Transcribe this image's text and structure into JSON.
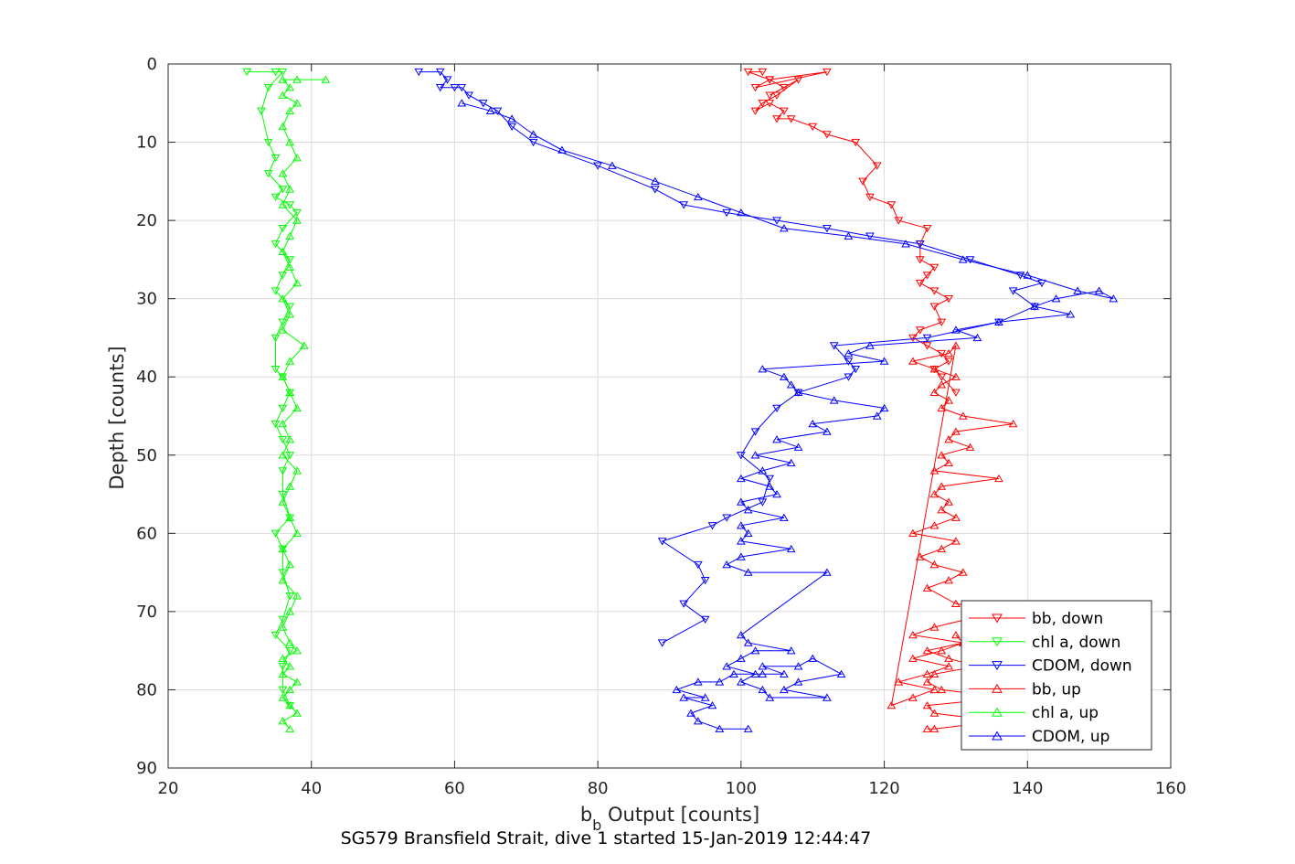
{
  "chart_data": {
    "type": "line",
    "title": "SG579 Bransfield Strait, dive 1 started 15-Jan-2019 12:44:47",
    "xlabel": "b_b Output [counts]",
    "xlabel_main": "b",
    "xlabel_sub": "b",
    "xlabel_rest": " Output [counts]",
    "ylabel": "Depth [counts]",
    "xlim": [
      20,
      160
    ],
    "ylim": [
      0,
      90
    ],
    "y_reversed": true,
    "grid": true,
    "legend_position": "bottom-right",
    "xticks": [
      20,
      40,
      60,
      80,
      100,
      120,
      140,
      160
    ],
    "yticks": [
      0,
      10,
      20,
      30,
      40,
      50,
      60,
      70,
      80,
      90
    ],
    "series": [
      {
        "name": "bb, down",
        "color": "#ff0000",
        "marker": "triangle-down",
        "x": [
          103,
          101,
          104,
          102,
          112,
          104,
          106,
          104,
          108,
          105,
          103,
          102,
          104,
          106,
          105,
          107,
          110,
          112,
          116,
          119,
          117,
          118,
          121,
          122,
          126,
          125,
          125,
          127,
          126,
          125,
          127,
          129,
          127,
          128,
          125,
          124,
          126,
          128,
          129,
          127,
          128,
          130
        ],
        "y": [
          1,
          1,
          2,
          3,
          1,
          2,
          3,
          4,
          2,
          4,
          5,
          6,
          5,
          6,
          7,
          7,
          8,
          9,
          10,
          13,
          15,
          17,
          18,
          20,
          21,
          23,
          25,
          26,
          27,
          28,
          29,
          30,
          31,
          33,
          34,
          35,
          36,
          37,
          38,
          39,
          40,
          42
        ]
      },
      {
        "name": "chl a, down",
        "color": "#00ff00",
        "marker": "triangle-down",
        "x": [
          31,
          35,
          36,
          34,
          33,
          34,
          35,
          34,
          36,
          35,
          37,
          38,
          36,
          35,
          37,
          36,
          35,
          37,
          36,
          35,
          35,
          36,
          37,
          36,
          35,
          36,
          37,
          36,
          36,
          37,
          35,
          36,
          36,
          37,
          36,
          35,
          37,
          36,
          36,
          37
        ],
        "y": [
          1,
          1,
          1,
          3,
          6,
          10,
          12,
          14,
          16,
          17,
          18,
          19,
          21,
          23,
          25,
          27,
          29,
          31,
          33,
          35,
          39,
          40,
          42,
          44,
          46,
          48,
          50,
          52,
          55,
          58,
          60,
          62,
          65,
          68,
          71,
          73,
          75,
          77,
          80,
          82
        ]
      },
      {
        "name": "CDOM, down",
        "color": "#0000ff",
        "marker": "triangle-down",
        "x": [
          55,
          58,
          59,
          58,
          60,
          61,
          62,
          64,
          66,
          68,
          71,
          80,
          88,
          92,
          98,
          105,
          112,
          118,
          125,
          132,
          139,
          142,
          138,
          141,
          136,
          126,
          113,
          115,
          116,
          115,
          108,
          105,
          102,
          100,
          104,
          103,
          98,
          96,
          89,
          94,
          95,
          92,
          95,
          89
        ],
        "y": [
          1,
          1,
          2,
          3,
          3,
          3,
          4,
          5,
          6,
          8,
          10,
          13,
          16,
          18,
          19,
          20,
          21,
          22,
          23,
          25,
          27,
          28,
          29,
          31,
          33,
          35,
          36,
          38,
          39,
          40,
          42,
          44,
          47,
          50,
          53,
          56,
          58,
          59,
          61,
          64,
          66,
          69,
          71,
          74
        ]
      },
      {
        "name": "bb, up",
        "color": "#ff0000",
        "marker": "triangle-up",
        "x": [
          126,
          127,
          136,
          127,
          126,
          137,
          128,
          126,
          127,
          133,
          129,
          126,
          131,
          124,
          127,
          136,
          130,
          126,
          129,
          131,
          127,
          125,
          128,
          130,
          124,
          127,
          130,
          128,
          129,
          127,
          128,
          136,
          127,
          129,
          128,
          132,
          129,
          130,
          138,
          131,
          128,
          129,
          127,
          128,
          130,
          127,
          124,
          129,
          130,
          121,
          124,
          127,
          122,
          126,
          129,
          124,
          128,
          131,
          130
        ],
        "y": [
          85,
          85,
          84,
          83,
          82,
          81,
          80,
          79,
          78,
          77,
          76,
          75,
          74,
          73,
          72,
          70,
          69,
          67,
          66,
          65,
          64,
          63,
          62,
          61,
          60,
          59,
          58,
          57,
          56,
          55,
          54,
          53,
          52,
          51,
          50,
          49,
          48,
          47,
          46,
          45,
          44,
          43,
          42,
          41,
          40,
          39,
          38,
          37,
          36,
          82,
          81,
          80,
          79,
          78,
          77,
          76,
          75,
          74,
          73
        ]
      },
      {
        "name": "chl a, up",
        "color": "#00ff00",
        "marker": "triangle-up",
        "x": [
          37,
          36,
          38,
          37,
          36,
          37,
          38,
          36,
          37,
          36,
          38,
          37,
          36,
          37,
          38,
          36,
          37,
          36,
          38,
          37,
          36,
          37,
          38,
          36,
          37,
          36,
          38,
          37,
          36,
          37,
          39,
          36,
          37,
          36,
          38,
          37,
          36,
          37,
          38,
          36,
          37,
          36,
          38,
          37,
          36,
          37,
          38,
          36,
          37,
          36,
          42,
          38
        ],
        "y": [
          85,
          84,
          83,
          82,
          81,
          80,
          79,
          78,
          77,
          76,
          75,
          74,
          72,
          70,
          68,
          66,
          64,
          62,
          60,
          58,
          56,
          54,
          52,
          50,
          48,
          46,
          44,
          42,
          40,
          38,
          36,
          34,
          32,
          30,
          28,
          26,
          24,
          22,
          20,
          18,
          16,
          14,
          12,
          10,
          8,
          6,
          5,
          4,
          3,
          2,
          2,
          2
        ]
      },
      {
        "name": "CDOM, up",
        "color": "#0000ff",
        "marker": "triangle-up",
        "x": [
          101,
          97,
          94,
          93,
          96,
          92,
          95,
          91,
          94,
          97,
          99,
          103,
          106,
          103,
          108,
          110,
          114,
          108,
          106,
          112,
          104,
          103,
          100,
          102,
          98,
          100,
          102,
          107,
          101,
          100,
          112,
          101,
          98,
          100,
          107,
          100,
          101,
          100,
          106,
          101,
          100,
          105,
          104,
          100,
          103,
          107,
          102,
          108,
          105,
          112,
          110,
          119,
          120,
          113,
          108,
          107,
          106,
          103,
          120,
          115,
          118,
          133,
          130,
          136,
          146,
          141,
          144,
          150,
          152,
          147,
          140,
          131,
          123,
          115,
          106,
          100,
          94,
          88,
          82,
          75,
          71,
          68,
          65,
          61
        ],
        "y": [
          85,
          85,
          84,
          83,
          82,
          81,
          81,
          80,
          79,
          79,
          78,
          78,
          78,
          77,
          77,
          76,
          78,
          79,
          80,
          81,
          81,
          80,
          79,
          78,
          77,
          76,
          75,
          75,
          74,
          73,
          65,
          65,
          64,
          63,
          62,
          61,
          60,
          59,
          58,
          57,
          56,
          55,
          54,
          53,
          52,
          51,
          50,
          49,
          48,
          47,
          46,
          45,
          44,
          43,
          42,
          41,
          40,
          39,
          38,
          37,
          36,
          35,
          34,
          33,
          32,
          31,
          30,
          29,
          30,
          29,
          27,
          25,
          23,
          22,
          21,
          19,
          17,
          15,
          13,
          11,
          9,
          7,
          6,
          5
        ]
      }
    ]
  }
}
